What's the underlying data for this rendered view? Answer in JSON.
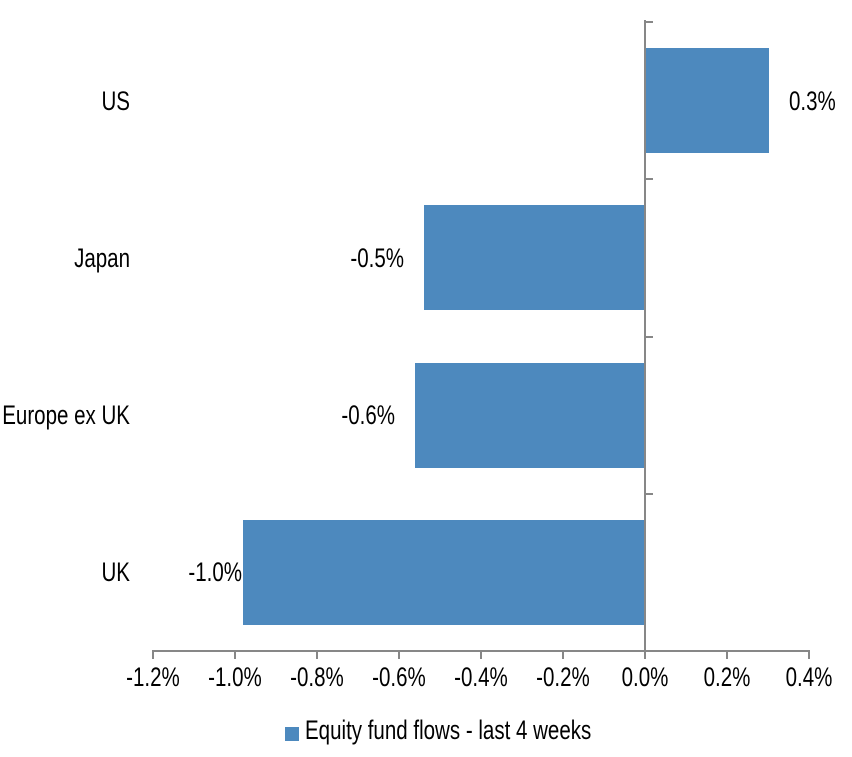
{
  "chart_data": {
    "type": "bar",
    "orientation": "horizontal",
    "title": "",
    "categories": [
      "US",
      "Japan",
      "Europe ex UK",
      "UK"
    ],
    "values": [
      0.3,
      -0.5,
      -0.6,
      -1.0
    ],
    "value_unit": "%",
    "data_labels": [
      "0.3%",
      "-0.5%",
      "-0.6%",
      "-1.0%"
    ],
    "plot_values": [
      0.3,
      -0.54,
      -0.56,
      -0.98
    ],
    "series_name": "Equity fund flows - last 4 weeks",
    "legend_label": "Equity fund flows - last 4 weeks",
    "legend_position": "bottom-center",
    "xlim": [
      -1.2,
      0.4
    ],
    "x_tick_values": [
      -1.2,
      -1.0,
      -0.8,
      -0.6,
      -0.4,
      -0.2,
      0.0,
      0.2,
      0.4
    ],
    "x_tick_labels": [
      "-1.2%",
      "-1.0%",
      "-0.8%",
      "-0.6%",
      "-0.4%",
      "-0.2%",
      "0.0%",
      "0.2%",
      "0.4%"
    ],
    "grid": false,
    "colors": {
      "bar": "#4D89BE",
      "axis": "#878787",
      "text": "#000000",
      "background": "#FFFFFF"
    }
  }
}
